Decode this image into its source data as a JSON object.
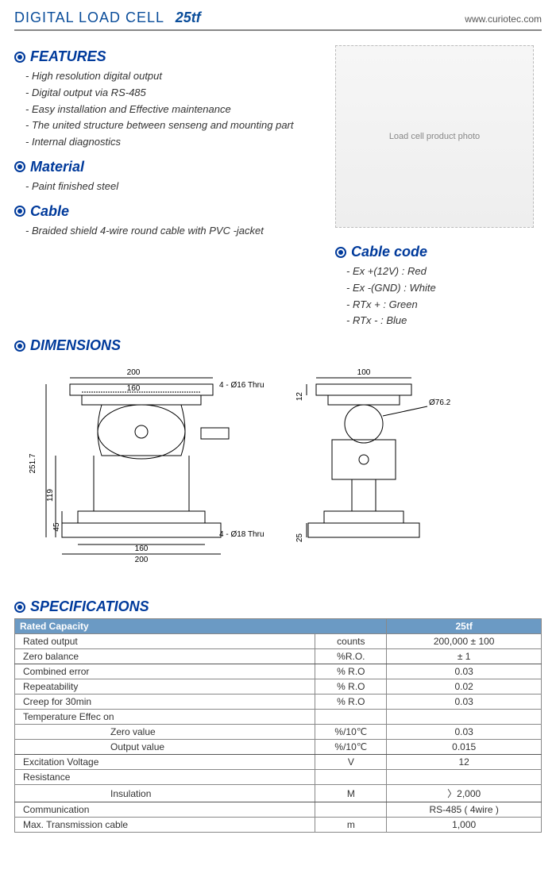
{
  "header": {
    "title": "DIGITAL LOAD CELL",
    "model": "25tf",
    "url": "www.curiotec.com"
  },
  "sections": {
    "features": {
      "heading": "FEATURES",
      "items": [
        "High resolution digital output",
        "Digital output via RS-485",
        "Easy installation and Effective maintenance",
        "The united structure between senseng and mounting part",
        "Internal diagnostics"
      ]
    },
    "material": {
      "heading": "Material",
      "items": [
        "Paint finished steel"
      ]
    },
    "cable": {
      "heading": "Cable",
      "items": [
        "Braided shield 4-wire round cable with PVC -jacket"
      ]
    },
    "cable_code": {
      "heading": "Cable code",
      "items": [
        "Ex +(12V) : Red",
        "Ex -(GND) : White",
        "RTx + : Green",
        "RTx - : Blue"
      ]
    },
    "dimensions": {
      "heading": "DIMENSIONS"
    },
    "specifications": {
      "heading": "SPECIFICATIONS"
    }
  },
  "product_image_alt": "Load cell product photo",
  "dimensions_labels": {
    "top200": "200",
    "top160": "160",
    "thru16": "4 - Ø16 Thru",
    "h251": "251.7",
    "h119": "119",
    "h45": "45",
    "bot160": "160",
    "bot200": "200",
    "thru18": "4 - Ø18 Thru",
    "side100": "100",
    "side12": "12",
    "d76": "Ø76.2",
    "side25": "25"
  },
  "spec_table": {
    "header_capacity": "Rated Capacity",
    "header_value": "25tf",
    "rows": [
      {
        "label": "Rated output",
        "unit": "counts",
        "value": "200,000 ± 100"
      },
      {
        "label": "Zero balance",
        "unit": "%R.O.",
        "value": "± 1",
        "group_end": true
      },
      {
        "label": "Combined error",
        "unit": "% R.O",
        "value": "0.03"
      },
      {
        "label": "Repeatability",
        "unit": "% R.O",
        "value": "0.02"
      },
      {
        "label": "Creep for 30min",
        "unit": "% R.O",
        "value": "0.03"
      },
      {
        "label": "Temperature Effec on",
        "unit": "",
        "value": ""
      },
      {
        "label": "Zero value",
        "sub": true,
        "unit": "%/10℃",
        "value": "0.03"
      },
      {
        "label": "Output value",
        "sub": true,
        "unit": "%/10℃",
        "value": "0.015",
        "group_end": true
      },
      {
        "label": "Excitation Voltage",
        "unit": "V",
        "value": "12"
      },
      {
        "label": "Resistance",
        "unit": "",
        "value": ""
      },
      {
        "label": "Insulation",
        "sub": true,
        "unit": "M",
        "value": "〉2,000",
        "group_end": true
      },
      {
        "label": "Communication",
        "unit": "",
        "value": "RS-485 ( 4wire )"
      },
      {
        "label": "Max. Transmission cable",
        "unit": "m",
        "value": "1,000"
      }
    ]
  },
  "colors": {
    "heading": "#003a9b",
    "table_header_bg": "#6b9ac4",
    "border": "#888888"
  }
}
